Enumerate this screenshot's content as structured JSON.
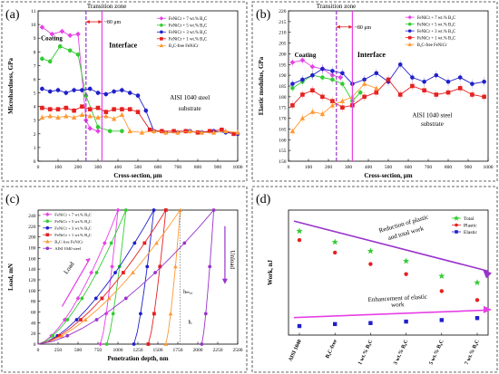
{
  "colors": {
    "magenta": "#e640e6",
    "green": "#33cc33",
    "blue": "#1f1fcc",
    "red": "#e62020",
    "orange": "#ff9933",
    "purple": "#9933cc",
    "dark_orange": "#cc6600",
    "panel_border": "#333333"
  },
  "panels": [
    {
      "label": "(a)"
    },
    {
      "label": "(b)"
    },
    {
      "label": "(c)"
    },
    {
      "label": "(d)"
    }
  ],
  "chart_data": [
    {
      "panel": "(a)",
      "type": "line",
      "xlabel": "Cross-section, μm",
      "ylabel": "Microhardness, GPa",
      "xlim": [
        0,
        1000
      ],
      "ylim": [
        0,
        11
      ],
      "xticks": [
        0,
        100,
        200,
        300,
        400,
        500,
        600,
        700,
        800,
        900,
        1000
      ],
      "yticks": [
        0,
        1,
        2,
        3,
        4,
        5,
        6,
        7,
        8,
        9,
        10,
        11
      ],
      "legend": "top-right",
      "annotations": [
        "Coating",
        "Transition zone",
        "~80 μm",
        "Interface",
        "AISI 1040 steel",
        "substrate"
      ],
      "series": [
        {
          "name": "FeNiCr + 7 wt.% B₄C",
          "color": "#e640e6",
          "marker": "diamond",
          "x": [
            20,
            70,
            120,
            160,
            200,
            240,
            260,
            300
          ],
          "y": [
            9.8,
            9.3,
            9.5,
            9.2,
            9.3,
            3.0,
            2.4,
            2.2
          ]
        },
        {
          "name": "FeNiCr + 5 wt.% B₄C",
          "color": "#33cc33",
          "marker": "circle",
          "x": [
            20,
            60,
            110,
            160,
            200,
            240,
            300,
            360,
            420
          ],
          "y": [
            7.5,
            7.3,
            8.4,
            8.1,
            7.8,
            4.8,
            2.5,
            2.2,
            2.2
          ]
        },
        {
          "name": "FeNiCr + 3 wt.% B₄C",
          "color": "#1f1fcc",
          "marker": "circle",
          "x": [
            20,
            60,
            100,
            140,
            180,
            220,
            260,
            300,
            340,
            380,
            420,
            460,
            500,
            540,
            580,
            640,
            700,
            760,
            820,
            880,
            940,
            1000
          ],
          "y": [
            5.3,
            5.1,
            5.2,
            5.0,
            5.2,
            5.2,
            5.3,
            5.0,
            4.9,
            5.1,
            5.2,
            5.0,
            4.8,
            3.7,
            2.2,
            2.1,
            2.1,
            2.2,
            2.1,
            2.2,
            2.1,
            2.0
          ]
        },
        {
          "name": "FeNiCr + 1 wt.% B₄C",
          "color": "#e62020",
          "marker": "square",
          "x": [
            20,
            60,
            100,
            140,
            180,
            220,
            260,
            300,
            340,
            380,
            420,
            460,
            500,
            560,
            620,
            680,
            740,
            800,
            860,
            920,
            980
          ],
          "y": [
            3.9,
            3.8,
            3.8,
            3.9,
            3.7,
            4.0,
            3.8,
            3.9,
            3.6,
            3.8,
            3.8,
            3.8,
            3.6,
            2.3,
            2.2,
            2.2,
            2.2,
            2.1,
            2.2,
            2.3,
            2.0
          ]
        },
        {
          "name": "B₄C-free FeNiCr",
          "color": "#ff9933",
          "marker": "triangle",
          "x": [
            20,
            60,
            100,
            140,
            180,
            220,
            260,
            300,
            340,
            380,
            420,
            460,
            520,
            580,
            640,
            700,
            760,
            820,
            880,
            940,
            1000
          ],
          "y": [
            3.2,
            3.3,
            3.2,
            3.3,
            3.2,
            3.4,
            3.3,
            3.2,
            3.3,
            3.1,
            3.4,
            2.2,
            2.1,
            2.2,
            2.1,
            2.1,
            2.2,
            2.1,
            2.1,
            2.2,
            2.1
          ]
        }
      ],
      "vlines": [
        {
          "x": 240,
          "color": "#9933cc",
          "style": "dashed"
        },
        {
          "x": 320,
          "color": "#e640e6",
          "style": "solid"
        }
      ]
    },
    {
      "panel": "(b)",
      "type": "line",
      "xlabel": "Cross-section, μm",
      "ylabel": "Elastic modulus, GPa",
      "xlim": [
        0,
        1000
      ],
      "ylim": [
        150,
        220
      ],
      "xticks": [
        0,
        100,
        200,
        300,
        400,
        500,
        600,
        700,
        800,
        900,
        1000
      ],
      "yticks": [
        150,
        155,
        160,
        165,
        170,
        175,
        180,
        185,
        190,
        195,
        200,
        205,
        210,
        215,
        220
      ],
      "legend": "top-right",
      "annotations": [
        "Coating",
        "Transition zone",
        "~80 μm",
        "Interface",
        "AISI 1040 steel",
        "substrate"
      ],
      "series": [
        {
          "name": "FeNiCr + 7 wt.% B₄C",
          "color": "#e640e6",
          "marker": "diamond",
          "x": [
            20,
            70,
            120,
            170,
            220,
            260
          ],
          "y": [
            196,
            197,
            194,
            193,
            190,
            189
          ]
        },
        {
          "name": "FeNiCr + 5 wt.% B₄C",
          "color": "#33cc33",
          "marker": "circle",
          "x": [
            20,
            70,
            120,
            170,
            220,
            270,
            320,
            360
          ],
          "y": [
            184,
            187,
            190,
            189,
            188,
            186,
            178,
            182
          ]
        },
        {
          "name": "FeNiCr + 3 wt.% B₄C",
          "color": "#1f1fcc",
          "marker": "circle",
          "x": [
            20,
            70,
            120,
            170,
            220,
            270,
            320,
            380,
            440,
            500,
            560,
            620,
            680,
            740,
            800,
            860,
            920,
            980
          ],
          "y": [
            186,
            188,
            190,
            193,
            192,
            191,
            186,
            188,
            191,
            187,
            195,
            189,
            187,
            190,
            187,
            189,
            186,
            187
          ]
        },
        {
          "name": "FeNiCr + 1 wt.% B₄C",
          "color": "#e62020",
          "marker": "square",
          "x": [
            20,
            70,
            120,
            170,
            220,
            270,
            320,
            380,
            440,
            500,
            560,
            620,
            680,
            740,
            800,
            860,
            920,
            980
          ],
          "y": [
            176,
            181,
            183,
            180,
            178,
            175,
            176,
            180,
            182,
            188,
            181,
            185,
            183,
            181,
            182,
            184,
            181,
            180
          ]
        },
        {
          "name": "B₄C-free FeNiCr",
          "color": "#ff9933",
          "marker": "triangle",
          "x": [
            20,
            70,
            120,
            170,
            220,
            270,
            320,
            380,
            440
          ],
          "y": [
            164,
            170,
            173,
            172,
            176,
            178,
            180,
            186,
            184
          ]
        }
      ],
      "vlines": [
        {
          "x": 240,
          "color": "#9933cc",
          "style": "dashed"
        },
        {
          "x": 320,
          "color": "#e640e6",
          "style": "solid"
        }
      ]
    },
    {
      "panel": "(c)",
      "type": "line",
      "xlabel": "Penetration depth, nm",
      "ylabel": "Load, mN",
      "xlim": [
        0,
        2500
      ],
      "ylim": [
        0,
        250
      ],
      "xticks": [
        0,
        250,
        500,
        750,
        1000,
        1250,
        1500,
        1750,
        2000,
        2250,
        2500
      ],
      "yticks": [
        0,
        20,
        40,
        60,
        80,
        100,
        120,
        140,
        160,
        180,
        200,
        220,
        240
      ],
      "legend": "top-left",
      "annotations": [
        "Load",
        "Unload",
        "hₘₐₓ",
        "hᵣ"
      ],
      "series": [
        {
          "name": "FeNiCr + 7 wt.% B₄C",
          "color": "#e640e6",
          "marker": "diamond",
          "hmax": 1000,
          "hr": 780
        },
        {
          "name": "FeNiCr + 5 wt.% B₄C",
          "color": "#33cc33",
          "marker": "circle",
          "hmax": 1100,
          "hr": 860
        },
        {
          "name": "FeNiCr + 3 wt.% B₄C",
          "color": "#1f1fcc",
          "marker": "circle",
          "hmax": 1450,
          "hr": 1200
        },
        {
          "name": "FeNiCr + 1 wt.% B₄C",
          "color": "#e62020",
          "marker": "square",
          "hmax": 1600,
          "hr": 1380
        },
        {
          "name": "B₄C-free FeNiCr",
          "color": "#ff9933",
          "marker": "triangle",
          "hmax": 1780,
          "hr": 1600
        },
        {
          "name": "AISI 1040 steel",
          "color": "#9933cc",
          "marker": "circle",
          "hmax": 2200,
          "hr": 2050
        }
      ],
      "peak_load": 250
    },
    {
      "panel": "(d)",
      "type": "scatter",
      "ylabel": "Work, nJ",
      "ylim": [
        0,
        250
      ],
      "categories": [
        "AISI 1040",
        "B₄C-free",
        "1 wt.% B₄C",
        "3 wt.% B₄C",
        "5 wt.% B₄C",
        "7 wt.% B₄C"
      ],
      "legend": "top-right",
      "annotations": [
        "Reduction of plastic",
        "and total work",
        "Enhancement of elastic",
        "work"
      ],
      "series": [
        {
          "name": "Total",
          "color": "#33cc33",
          "marker": "star",
          "values": [
            208,
            186,
            168,
            148,
            118,
            105
          ]
        },
        {
          "name": "Plastic",
          "color": "#e62020",
          "marker": "circle",
          "values": [
            190,
            165,
            142,
            122,
            88,
            70
          ]
        },
        {
          "name": "Elastic",
          "color": "#1f1fcc",
          "marker": "square",
          "values": [
            18,
            22,
            24,
            27,
            30,
            34
          ]
        }
      ]
    }
  ]
}
